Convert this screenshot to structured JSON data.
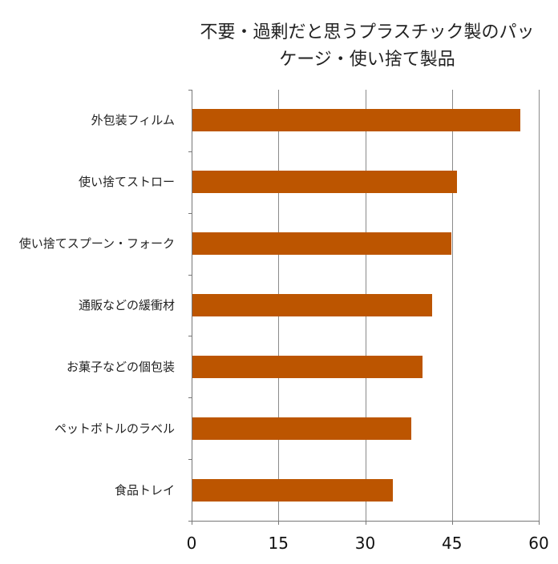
{
  "chart_data": {
    "type": "bar",
    "orientation": "horizontal",
    "title": "不要・過剰だと思うプラスチック製のパッケージ・使い捨て製品",
    "title_lines": [
      "不要・過剰だと思うプラスチック製のパッ",
      "ケージ・使い捨て製品"
    ],
    "categories": [
      "外包装フィルム",
      "使い捨てストロー",
      "使い捨てスプーン・フォーク",
      "通販などの緩衝材",
      "お菓子などの個包装",
      "ペットボトルのラベル",
      "食品トレイ"
    ],
    "values": [
      56.7,
      45.7,
      44.7,
      41.4,
      39.7,
      37.8,
      34.7
    ],
    "xlabel": "",
    "ylabel": "",
    "xlim": [
      0,
      60
    ],
    "xticks": [
      "0",
      "15",
      "30",
      "45",
      "60"
    ],
    "grid": true,
    "legend": null,
    "bar_color": "#BC5500"
  }
}
